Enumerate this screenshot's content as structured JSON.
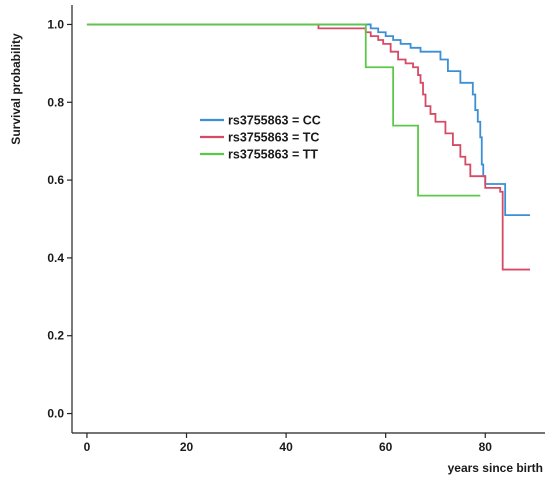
{
  "chart_data": {
    "type": "line",
    "subtype": "kaplan-meier step",
    "xlabel": "years since birth",
    "ylabel": "Survival probability",
    "xlim": [
      -3,
      92
    ],
    "ylim": [
      -0.05,
      1.05
    ],
    "x_ticks": [
      0,
      20,
      40,
      60,
      80
    ],
    "y_ticks": [
      0.0,
      0.2,
      0.4,
      0.6,
      0.8,
      1.0
    ],
    "y_tick_labels": [
      "0.0",
      "0.2",
      "0.4",
      "0.6",
      "0.8",
      "1.0"
    ],
    "grid": false,
    "legend_position": "center-left",
    "series": [
      {
        "name": "rs3755863 = CC",
        "color": "#3a8fd6",
        "x": [
          0,
          57.0,
          58.5,
          60.0,
          61.5,
          63.0,
          65.0,
          67.0,
          71.0,
          72.5,
          75.0,
          77.5,
          78.0,
          78.5,
          79.0,
          79.3,
          79.6,
          80.0,
          84.0,
          89.0
        ],
        "y": [
          1.0,
          0.99,
          0.98,
          0.97,
          0.96,
          0.95,
          0.94,
          0.93,
          0.91,
          0.88,
          0.85,
          0.82,
          0.78,
          0.75,
          0.71,
          0.64,
          0.61,
          0.59,
          0.51,
          0.51
        ]
      },
      {
        "name": "rs3755863 = TC",
        "color": "#d64a66",
        "x": [
          0,
          46.5,
          56.0,
          57.0,
          58.5,
          59.5,
          61.0,
          62.5,
          64.0,
          65.5,
          66.5,
          67.0,
          67.5,
          68.0,
          69.0,
          70.0,
          72.0,
          73.5,
          75.0,
          76.0,
          77.0,
          80.0,
          83.0,
          83.5,
          89.0
        ],
        "y": [
          1.0,
          0.99,
          0.98,
          0.97,
          0.96,
          0.95,
          0.93,
          0.91,
          0.9,
          0.89,
          0.87,
          0.85,
          0.82,
          0.79,
          0.77,
          0.75,
          0.72,
          0.69,
          0.66,
          0.64,
          0.61,
          0.58,
          0.57,
          0.37,
          0.37
        ]
      },
      {
        "name": "rs3755863 = TT",
        "color": "#5cc84a",
        "x": [
          0,
          56.0,
          61.5,
          66.5,
          79.0
        ],
        "y": [
          1.0,
          0.89,
          0.74,
          0.56,
          0.56
        ]
      }
    ]
  }
}
